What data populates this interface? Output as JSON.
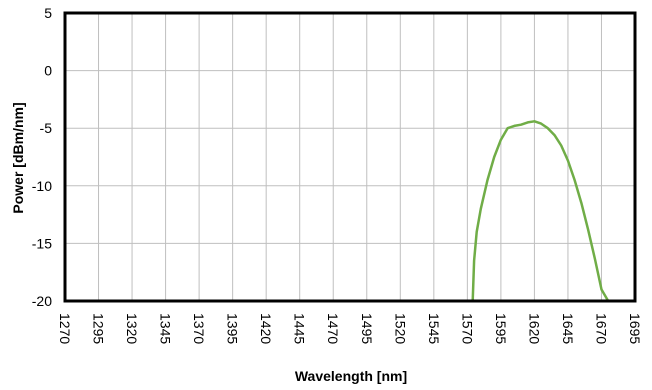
{
  "chart_data": {
    "type": "line",
    "title": "",
    "xlabel": "Wavelength [nm]",
    "ylabel": "Power [dBm/nm]",
    "xlim": [
      1270,
      1695
    ],
    "ylim": [
      -20,
      5
    ],
    "grid": true,
    "legend": "none",
    "x_ticks": [
      "1270",
      "1295",
      "1320",
      "1345",
      "1370",
      "1395",
      "1420",
      "1445",
      "1470",
      "1495",
      "1520",
      "1545",
      "1570",
      "1595",
      "1620",
      "1645",
      "1670",
      "1695"
    ],
    "y_ticks": [
      "5",
      "0",
      "-5",
      "-10",
      "-15",
      "-20"
    ],
    "colors": {
      "series": "#70ad47",
      "axis": "#000000",
      "grid": "#bfbfbf"
    },
    "series": [
      {
        "x": [
          1270,
          1500,
          1574,
          1575,
          1577,
          1580,
          1585,
          1590,
          1595,
          1600,
          1605,
          1610,
          1615,
          1620,
          1625,
          1630,
          1635,
          1640,
          1645,
          1650,
          1655,
          1660,
          1665,
          1670,
          1675,
          1695
        ],
        "y": [
          -20.0,
          -20.0,
          -20.0,
          -16.5,
          -14.0,
          -12.0,
          -9.5,
          -7.5,
          -6.0,
          -5.0,
          -4.8,
          -4.7,
          -4.5,
          -4.4,
          -4.6,
          -5.0,
          -5.6,
          -6.5,
          -7.8,
          -9.5,
          -11.5,
          -13.8,
          -16.3,
          -19.0,
          -20.0,
          -20.0
        ]
      }
    ]
  }
}
